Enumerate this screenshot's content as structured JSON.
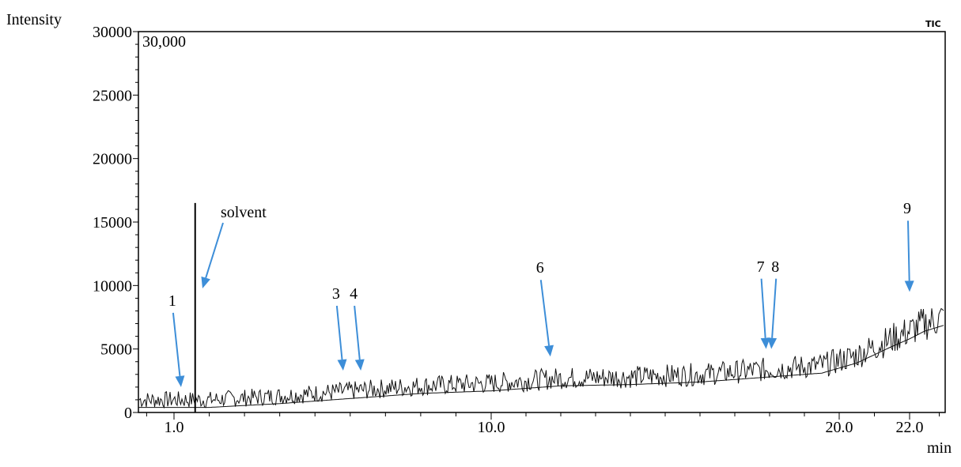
{
  "chart_data": {
    "type": "line",
    "ylabel": "Intensity",
    "xlabel": "min",
    "corner_label": "TIC",
    "max_label": "30,000",
    "ylim": [
      0,
      30000
    ],
    "yticks": [
      0,
      5000,
      10000,
      15000,
      20000,
      25000,
      30000
    ],
    "ytick_labels": [
      "0",
      "5000",
      "10000",
      "15000",
      "20000",
      "25000",
      "30000"
    ],
    "xticks": [
      1.0,
      10.0,
      20.0,
      22.0
    ],
    "xtick_labels": [
      "1.0",
      "10.0",
      "20.0",
      "22.0"
    ],
    "xlim": [
      -0.3,
      23.2
    ],
    "grid": false,
    "solvent_peak": {
      "label": "solvent",
      "x": 1.6,
      "y": 16500
    },
    "baseline": {
      "x": [
        -0.3,
        2.0,
        4.0,
        6.0,
        8.0,
        10.0,
        12.0,
        14.0,
        16.0,
        18.0,
        19.5,
        20.5,
        21.5,
        22.5,
        23.2
      ],
      "y": [
        1000,
        1000,
        1300,
        1700,
        2100,
        2300,
        2700,
        2800,
        3000,
        3400,
        3700,
        4500,
        5800,
        7000,
        7500
      ]
    },
    "annotations": [
      {
        "label": "1",
        "x": 1.2,
        "y": 2000
      },
      {
        "label": "3",
        "x": 5.8,
        "y": 3300
      },
      {
        "label": "4",
        "x": 6.3,
        "y": 3300
      },
      {
        "label": "6",
        "x": 11.7,
        "y": 4400
      },
      {
        "label": "7",
        "x": 17.9,
        "y": 5000
      },
      {
        "label": "8",
        "x": 18.05,
        "y": 5000
      },
      {
        "label": "9",
        "x": 22.0,
        "y": 9500
      }
    ],
    "arrow_color": "#3d8ed8"
  }
}
